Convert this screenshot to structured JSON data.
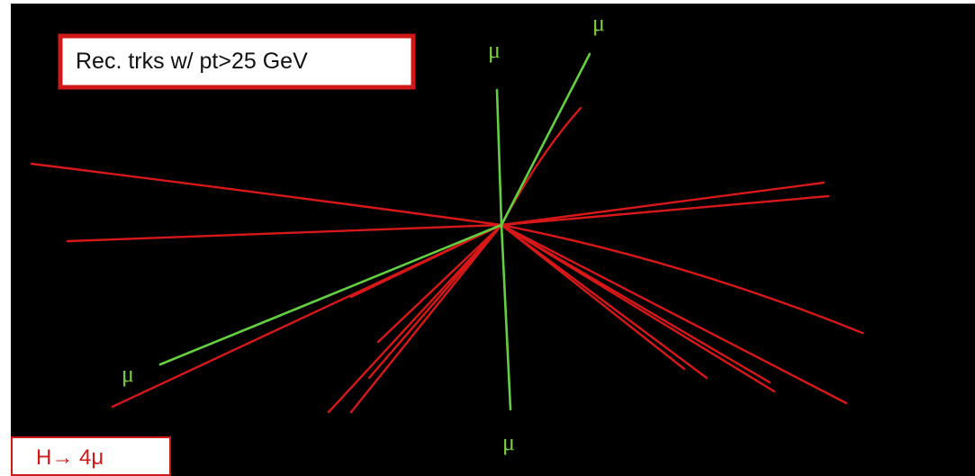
{
  "label_box": {
    "text": "Rec. trks w/ pt>25 GeV"
  },
  "caption": {
    "text": "H→ 4μ"
  },
  "muon_labels": [
    "μ",
    "μ",
    "μ",
    "μ"
  ]
}
